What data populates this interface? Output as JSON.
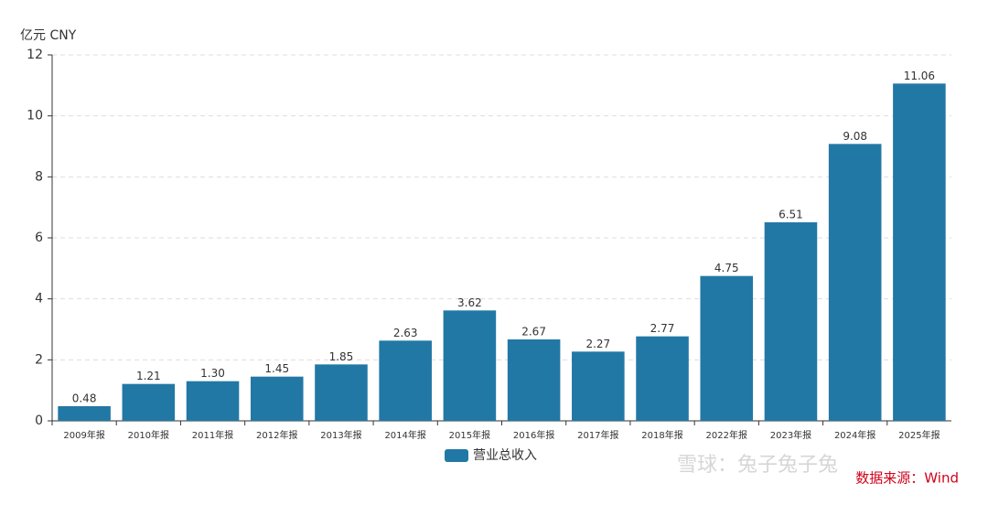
{
  "chart_data": {
    "type": "bar",
    "y_label": "亿元  CNY",
    "categories": [
      "2009年报",
      "2010年报",
      "2011年报",
      "2012年报",
      "2013年报",
      "2014年报",
      "2015年报",
      "2016年报",
      "2017年报",
      "2018年报",
      "2022年报",
      "2023年报",
      "2024年报",
      "2025年报"
    ],
    "series": [
      {
        "name": "营业总收入",
        "color": "#2278a5",
        "values": [
          0.48,
          1.21,
          1.3,
          1.45,
          1.85,
          2.63,
          3.62,
          2.67,
          2.27,
          2.77,
          4.75,
          6.51,
          9.08,
          11.06
        ],
        "value_labels": [
          "0.48",
          "1.21",
          "1.30",
          "1.45",
          "1.85",
          "2.63",
          "3.62",
          "2.67",
          "2.27",
          "2.77",
          "4.75",
          "6.51",
          "9.08",
          "11.06"
        ]
      }
    ],
    "ylim": [
      0,
      12
    ],
    "yticks": [
      0,
      2,
      4,
      6,
      8,
      10,
      12
    ],
    "grid": true,
    "source": "数据来源：Wind",
    "watermark": "雪球：兔子兔子兔"
  }
}
